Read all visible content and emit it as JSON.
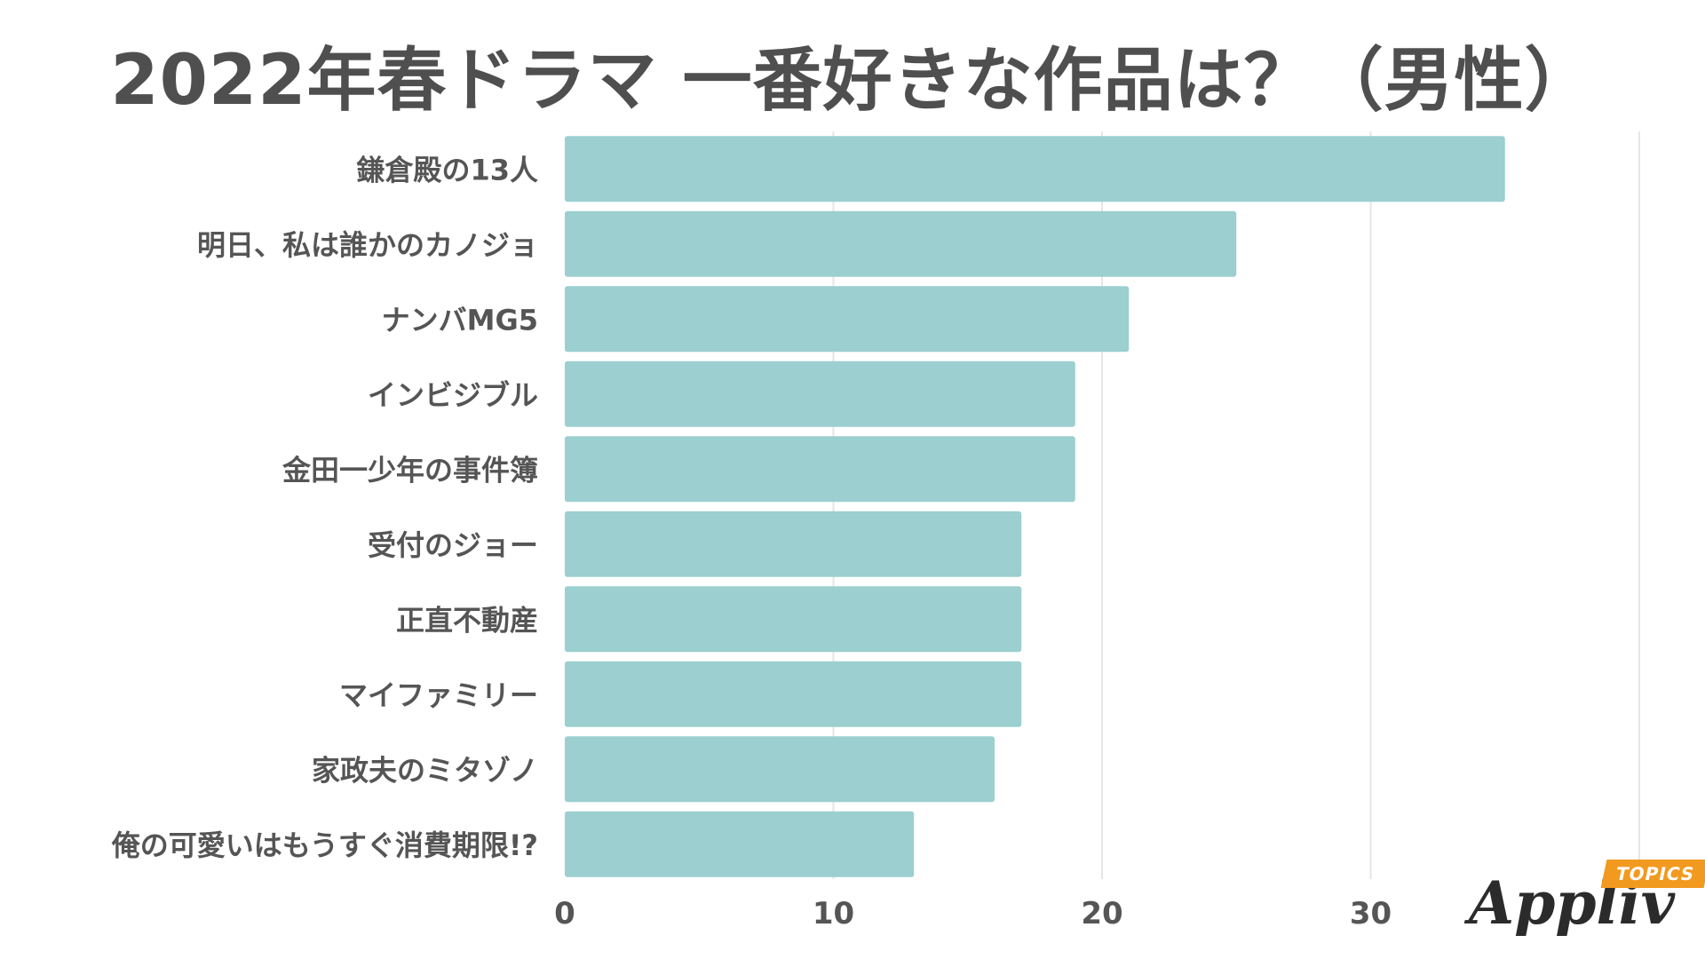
{
  "chart_data": {
    "type": "bar",
    "orientation": "horizontal",
    "title": "2022年春ドラマ 一番好きな作品は？（男性）",
    "categories": [
      "鎌倉殿の13人",
      "明日、私は誰かのカノジョ",
      "ナンバMG5",
      "インビジブル",
      "金田一少年の事件簿",
      "受付のジョー",
      "正直不動産",
      "マイファミリー",
      "家政夫のミタゾノ",
      "俺の可愛いはもうすぐ消費期限!?"
    ],
    "values": [
      35,
      25,
      21,
      19,
      19,
      17,
      17,
      17,
      16,
      13
    ],
    "xlim": [
      0,
      40
    ],
    "xticks": [
      0,
      10,
      20,
      30
    ],
    "grid": true,
    "bar_color": "#9bcfd0"
  },
  "logo": {
    "name": "Appliv",
    "badge": "TOPICS"
  }
}
